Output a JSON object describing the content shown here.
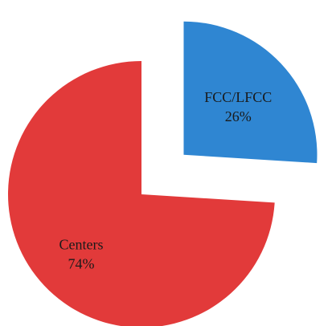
{
  "chart_data": {
    "type": "pie",
    "title": "",
    "slices": [
      {
        "name": "Centers",
        "value": 74,
        "label": "74%",
        "color": "#e23a3a",
        "exploded": false
      },
      {
        "name": "FCC/LFCC",
        "value": 26,
        "label": "26%",
        "color": "#2f86d2",
        "exploded": true
      }
    ],
    "legend": "none"
  }
}
